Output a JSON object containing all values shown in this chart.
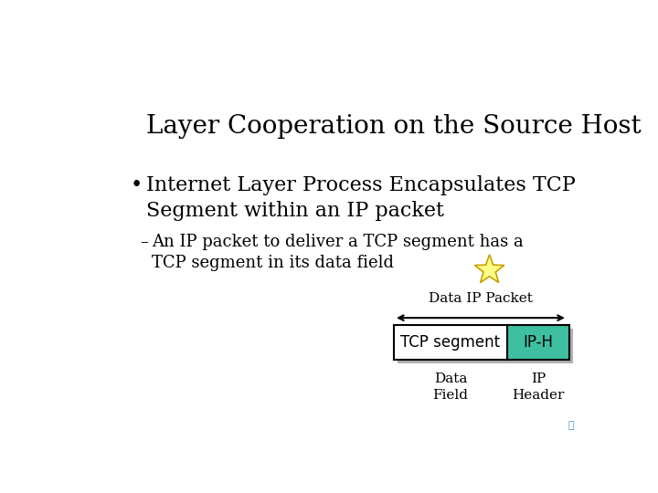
{
  "title": "Layer Cooperation on the Source Host",
  "bullet_main": "Internet Layer Process Encapsulates TCP\nSegment within an IP packet",
  "bullet_sub": "An IP packet to deliver a TCP segment has a\nTCP segment in its data field",
  "packet_label": "Data IP Packet",
  "box1_label": "TCP segment",
  "box2_label": "IP-H",
  "sub_label1": "Data\nField",
  "sub_label2": "IP\nHeader",
  "bg_color": "#ffffff",
  "box1_color": "#ffffff",
  "box2_color": "#3dbfa0",
  "box_border_color": "#000000",
  "shadow_color": "#b0b0b0",
  "text_color": "#000000",
  "star_color": "#ffff88",
  "star_edge_color": "#c8a000",
  "title_fontsize": 20,
  "bullet_fontsize": 16,
  "sub_fontsize": 13,
  "diagram_fontsize": 11
}
